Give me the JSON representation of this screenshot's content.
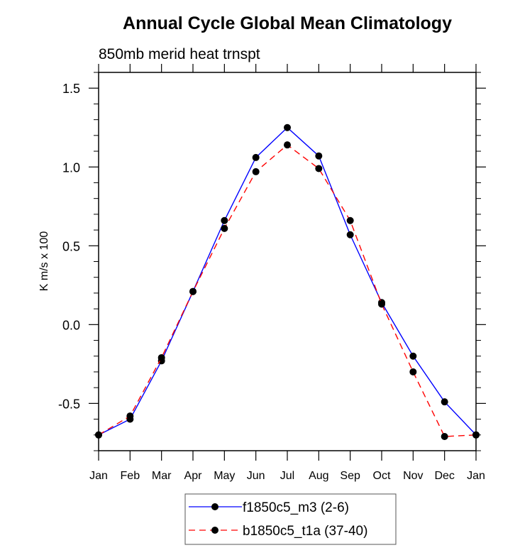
{
  "chart_data": {
    "type": "line",
    "title": "Annual Cycle Global Mean Climatology",
    "subtitle": "850mb merid heat trnspt",
    "xlabel": "",
    "ylabel": "K m/s x 100",
    "categories": [
      "Jan",
      "Feb",
      "Mar",
      "Apr",
      "May",
      "Jun",
      "Jul",
      "Aug",
      "Sep",
      "Oct",
      "Nov",
      "Dec",
      "Jan"
    ],
    "ylim": [
      -0.8,
      1.6
    ],
    "yticks": [
      -0.5,
      0.0,
      0.5,
      1.0,
      1.5
    ],
    "ytick_labels": [
      "-0.5",
      "0.0",
      "0.5",
      "1.0",
      "1.5"
    ],
    "yminor_step": 0.1,
    "grid": false,
    "legend_position": "bottom-center",
    "series": [
      {
        "name": "f1850c5_m3 (2-6)",
        "color": "#0000ff",
        "line_style": "solid",
        "marker": "filled-circle",
        "values": [
          -0.7,
          -0.6,
          -0.23,
          0.21,
          0.66,
          1.06,
          1.25,
          1.07,
          0.57,
          0.14,
          -0.2,
          -0.49,
          -0.7
        ]
      },
      {
        "name": "b1850c5_t1a (37-40)",
        "color": "#ff0000",
        "line_style": "dashed",
        "marker": "filled-circle",
        "values": [
          -0.7,
          -0.58,
          -0.21,
          0.21,
          0.61,
          0.97,
          1.14,
          0.99,
          0.66,
          0.13,
          -0.3,
          -0.71,
          -0.7
        ]
      }
    ]
  }
}
